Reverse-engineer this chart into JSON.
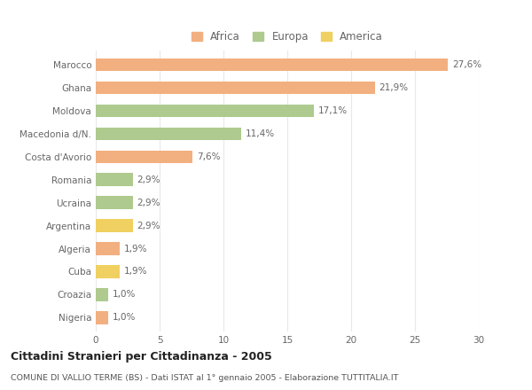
{
  "categories": [
    "Marocco",
    "Ghana",
    "Moldova",
    "Macedonia d/N.",
    "Costa d'Avorio",
    "Romania",
    "Ucraina",
    "Argentina",
    "Algeria",
    "Cuba",
    "Croazia",
    "Nigeria"
  ],
  "values": [
    27.6,
    21.9,
    17.1,
    11.4,
    7.6,
    2.9,
    2.9,
    2.9,
    1.9,
    1.9,
    1.0,
    1.0
  ],
  "labels": [
    "27,6%",
    "21,9%",
    "17,1%",
    "11,4%",
    "7,6%",
    "2,9%",
    "2,9%",
    "2,9%",
    "1,9%",
    "1,9%",
    "1,0%",
    "1,0%"
  ],
  "colors": [
    "#F2AF80",
    "#F2AF80",
    "#AECA8E",
    "#AECA8E",
    "#F2AF80",
    "#AECA8E",
    "#AECA8E",
    "#F0D060",
    "#F2AF80",
    "#F0D060",
    "#AECA8E",
    "#F2AF80"
  ],
  "legend_labels": [
    "Africa",
    "Europa",
    "America"
  ],
  "legend_colors": [
    "#F2AF80",
    "#AECA8E",
    "#F0D060"
  ],
  "title": "Cittadini Stranieri per Cittadinanza - 2005",
  "subtitle": "COMUNE DI VALLIO TERME (BS) - Dati ISTAT al 1° gennaio 2005 - Elaborazione TUTTITALIA.IT",
  "xlim": [
    0,
    30
  ],
  "xticks": [
    0,
    5,
    10,
    15,
    20,
    25,
    30
  ],
  "bg_color": "#FFFFFF",
  "grid_color": "#E8E8E8"
}
